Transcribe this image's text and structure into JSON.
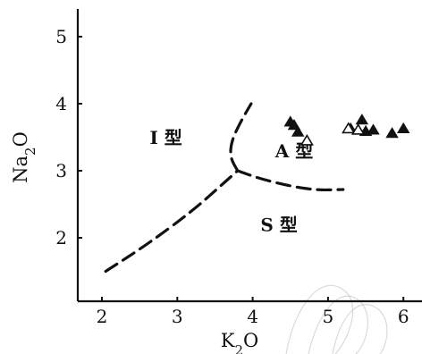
{
  "chart_data": {
    "type": "scatter",
    "title": "",
    "xlabel": "K₂O",
    "ylabel": "Na₂O",
    "xlim": [
      1.7,
      6.2
    ],
    "ylim": [
      1.1,
      5.3
    ],
    "x_ticks": [
      "2",
      "3",
      "4",
      "5",
      "6"
    ],
    "y_ticks": [
      "2",
      "3",
      "4",
      "5"
    ],
    "regions": [
      {
        "name": "I 型",
        "x": 2.85,
        "y": 3.4
      },
      {
        "name": "A 型",
        "x": 4.55,
        "y": 3.2
      },
      {
        "name": "S 型",
        "x": 4.35,
        "y": 2.1
      }
    ],
    "boundaries": [
      {
        "name": "I-S",
        "points": [
          [
            2.05,
            1.5
          ],
          [
            2.6,
            1.9
          ],
          [
            3.2,
            2.4
          ],
          [
            3.55,
            2.75
          ],
          [
            3.8,
            3.0
          ]
        ]
      },
      {
        "name": "I-A",
        "points": [
          [
            3.8,
            3.0
          ],
          [
            3.7,
            3.2
          ],
          [
            3.72,
            3.45
          ],
          [
            3.85,
            3.75
          ],
          [
            3.98,
            4.0
          ]
        ]
      },
      {
        "name": "A-S",
        "points": [
          [
            3.8,
            3.0
          ],
          [
            4.1,
            2.88
          ],
          [
            4.5,
            2.77
          ],
          [
            4.85,
            2.71
          ],
          [
            5.2,
            2.72
          ]
        ]
      }
    ],
    "series": [
      {
        "marker": "filled-triangle",
        "points": [
          [
            4.5,
            3.72
          ],
          [
            4.55,
            3.67
          ],
          [
            4.6,
            3.57
          ],
          [
            5.3,
            3.62
          ],
          [
            5.45,
            3.75
          ],
          [
            5.5,
            3.58
          ],
          [
            5.6,
            3.6
          ],
          [
            5.85,
            3.55
          ],
          [
            6.0,
            3.62
          ]
        ]
      },
      {
        "marker": "open-triangle",
        "points": [
          [
            4.72,
            3.44
          ],
          [
            5.27,
            3.62
          ],
          [
            5.4,
            3.6
          ]
        ]
      }
    ],
    "grid": false,
    "legend": "none"
  }
}
